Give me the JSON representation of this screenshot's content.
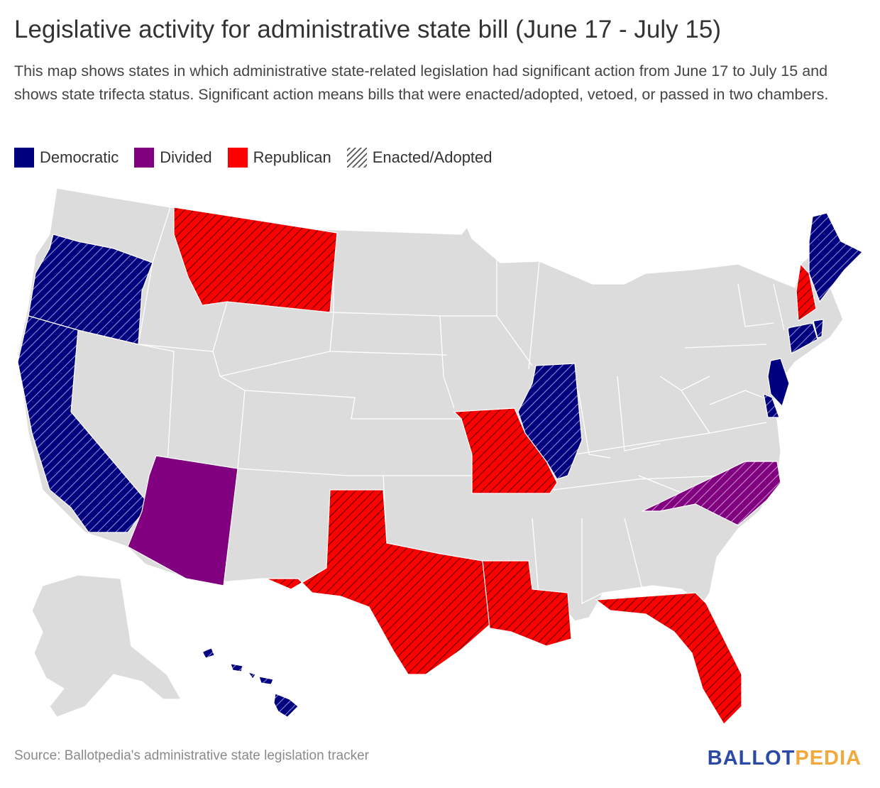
{
  "title": "Legislative activity for administrative state bill (June 17 - July 15)",
  "subtitle": "This map shows states in which administrative state-related legislation had significant action from June 17 to July 15 and shows state trifecta status. Significant action means bills that were enacted/adopted, vetoed, or passed in two chambers.",
  "legend": [
    {
      "label": "Democratic",
      "color": "#00007f",
      "pattern": "solid"
    },
    {
      "label": "Divided",
      "color": "#800080",
      "pattern": "solid"
    },
    {
      "label": "Republican",
      "color": "#ff0000",
      "pattern": "solid"
    },
    {
      "label": "Enacted/Adopted",
      "color": "#555555",
      "pattern": "hatched"
    }
  ],
  "colors": {
    "democratic": "#00007f",
    "divided": "#800080",
    "republican": "#ff0000",
    "no_action": "#dcdcdc"
  },
  "states": [
    {
      "name": "Oregon",
      "status": "Democratic",
      "enacted": true
    },
    {
      "name": "California",
      "status": "Democratic",
      "enacted": true
    },
    {
      "name": "Hawaii",
      "status": "Democratic",
      "enacted": true
    },
    {
      "name": "Illinois",
      "status": "Democratic",
      "enacted": true
    },
    {
      "name": "Maine",
      "status": "Democratic",
      "enacted": true
    },
    {
      "name": "Connecticut",
      "status": "Democratic",
      "enacted": true
    },
    {
      "name": "Rhode Island",
      "status": "Democratic",
      "enacted": true
    },
    {
      "name": "New Jersey",
      "status": "Democratic",
      "enacted": false
    },
    {
      "name": "Delaware",
      "status": "Democratic",
      "enacted": true
    },
    {
      "name": "Arizona",
      "status": "Divided",
      "enacted": false
    },
    {
      "name": "North Carolina",
      "status": "Divided",
      "enacted": true
    },
    {
      "name": "Montana",
      "status": "Republican",
      "enacted": true
    },
    {
      "name": "Missouri",
      "status": "Republican",
      "enacted": true
    },
    {
      "name": "Texas",
      "status": "Republican",
      "enacted": true
    },
    {
      "name": "Louisiana",
      "status": "Republican",
      "enacted": true
    },
    {
      "name": "Florida",
      "status": "Republican",
      "enacted": true
    },
    {
      "name": "New Hampshire",
      "status": "Republican",
      "enacted": true
    }
  ],
  "source": "Source: Ballotpedia's administrative state legislation tracker",
  "logo": {
    "part1": "BALLOT",
    "part2": "PEDIA"
  }
}
